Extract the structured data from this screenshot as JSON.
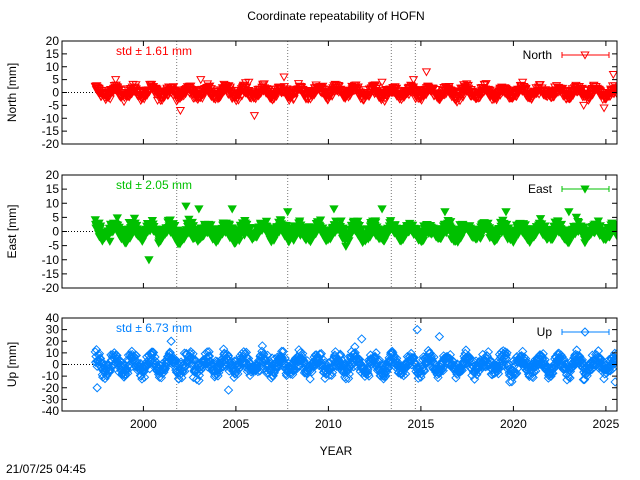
{
  "figure": {
    "title": "Coordinate repeatability of HOFN",
    "xlabel": "YEAR",
    "timestamp": "21/07/25 04:45"
  },
  "chart_data": [
    {
      "type": "scatter",
      "name": "north",
      "ylabel": "North [mm]",
      "legend": "North",
      "legend_position": "top-right",
      "std_label": "std ± 1.61 mm",
      "color": "#ff0000",
      "marker": "triangle-down-open",
      "ylim": [
        -20,
        20
      ],
      "yticks": [
        20,
        15,
        10,
        5,
        0,
        -5,
        -10,
        -15,
        -20
      ],
      "xlim": [
        1995.6,
        2025.6
      ],
      "noise": 1.8,
      "min_band": -6,
      "max_band": 6,
      "outliers": [
        [
          1998.5,
          5
        ],
        [
          2002.0,
          -7
        ],
        [
          2003.1,
          5
        ],
        [
          2005.7,
          4
        ],
        [
          2006.0,
          -9
        ],
        [
          2007.6,
          6
        ],
        [
          2012.9,
          4
        ],
        [
          2014.6,
          5
        ],
        [
          2015.3,
          8
        ],
        [
          2020.5,
          4
        ],
        [
          2023.8,
          -5
        ],
        [
          2024.9,
          -6
        ],
        [
          2025.4,
          7
        ]
      ]
    },
    {
      "type": "scatter",
      "name": "east",
      "ylabel": "East [mm]",
      "legend": "East",
      "legend_position": "top-right",
      "std_label": "std ± 2.05 mm",
      "color": "#00c000",
      "marker": "triangle-down-filled",
      "ylim": [
        -20,
        20
      ],
      "yticks": [
        20,
        15,
        10,
        5,
        0,
        -5,
        -10,
        -15,
        -20
      ],
      "xlim": [
        1995.6,
        2025.6
      ],
      "noise": 2.3,
      "min_band": -7,
      "max_band": 8,
      "outliers": [
        [
          2000.3,
          -10
        ],
        [
          2002.3,
          9
        ],
        [
          2003.0,
          8
        ],
        [
          2004.8,
          8
        ],
        [
          2007.8,
          7
        ],
        [
          2010.3,
          8
        ],
        [
          2012.9,
          8
        ],
        [
          2016.3,
          7
        ],
        [
          2019.6,
          7
        ],
        [
          2023.0,
          7
        ]
      ]
    },
    {
      "type": "scatter",
      "name": "up",
      "ylabel": "Up [mm]",
      "legend": "Up",
      "legend_position": "top-right",
      "std_label": "std ± 6.73 mm",
      "color": "#0080ff",
      "marker": "diamond-open",
      "ylim": [
        -40,
        40
      ],
      "yticks": [
        40,
        30,
        20,
        10,
        0,
        -10,
        -20,
        -30,
        -40
      ],
      "xlim": [
        1995.6,
        2025.6
      ],
      "noise": 6.8,
      "min_band": -24,
      "max_band": 30,
      "outliers": [
        [
          1997.5,
          -20
        ],
        [
          2001.5,
          20
        ],
        [
          2004.6,
          -22
        ],
        [
          2011.8,
          22
        ],
        [
          2014.8,
          30
        ],
        [
          2016.0,
          24
        ],
        [
          2019.8,
          -15
        ],
        [
          2025.5,
          -15
        ]
      ]
    }
  ],
  "x_axis": {
    "ticks": [
      2000,
      2005,
      2010,
      2015,
      2020,
      2025
    ],
    "data_start": 1997.4,
    "data_end": 2025.6,
    "event_lines": [
      2001.8,
      2007.8,
      2013.4,
      2014.7
    ]
  }
}
